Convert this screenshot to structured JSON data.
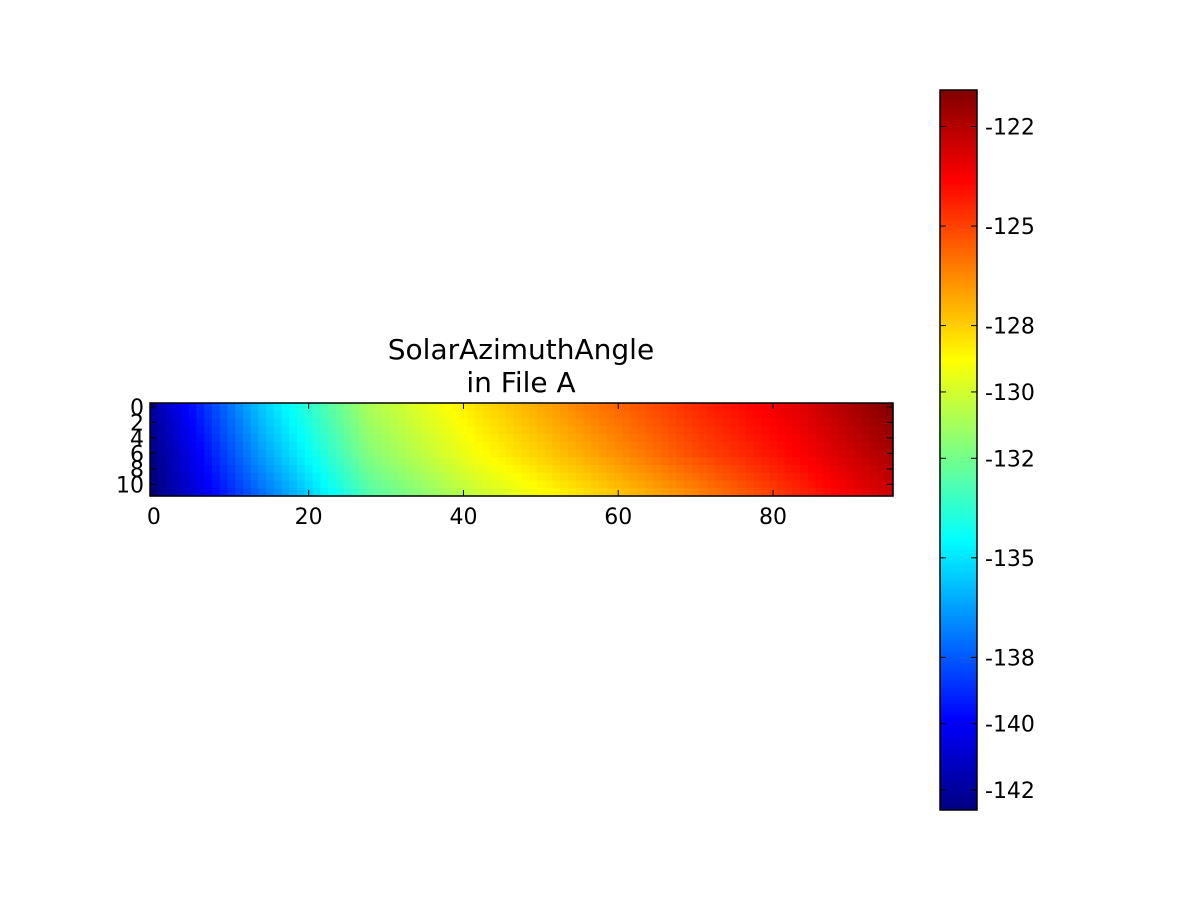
{
  "chart_data": {
    "type": "heatmap",
    "title": [
      "SolarAzimuthAngle",
      "in File A"
    ],
    "xlabel": "",
    "ylabel": "",
    "x_ticks": [
      "0",
      "20",
      "40",
      "60",
      "80"
    ],
    "y_ticks": [
      "0",
      "2",
      "4",
      "6",
      "8",
      "10"
    ],
    "xlim": [
      -0.5,
      95.5
    ],
    "ylim": [
      11.5,
      -0.5
    ],
    "grid": false,
    "colormap": "jet",
    "colorbar": {
      "range": [
        -142.6,
        -120.9
      ],
      "ticks": [
        "-122",
        "-125",
        "-128",
        "-130",
        "-132",
        "-135",
        "-138",
        "-140",
        "-142"
      ],
      "placement": "right"
    },
    "values": [
      [
        -141.8,
        -135.6,
        -130.8,
        -128.4,
        -126.3,
        -124.5,
        -122.9,
        -121.0
      ],
      [
        -142.4,
        -136.5,
        -131.6,
        -129.1,
        -127.2,
        -125.2,
        -123.5,
        -121.8
      ],
      [
        -142.6,
        -137.5,
        -132.6,
        -130.1,
        -128.3,
        -126.4,
        -124.3,
        -122.6
      ]
    ],
    "value_grid": {
      "x": [
        0,
        14,
        28,
        42,
        56,
        70,
        84,
        95
      ],
      "y": [
        0,
        6,
        11
      ]
    }
  }
}
